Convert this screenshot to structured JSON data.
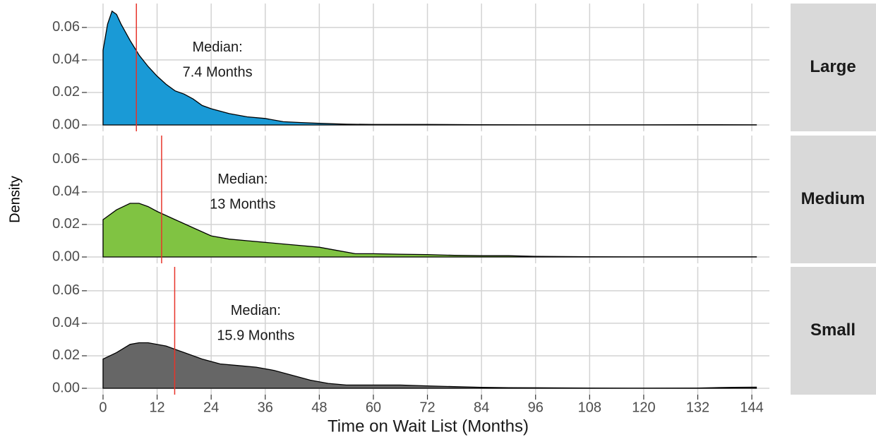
{
  "chart_data": [
    {
      "type": "area",
      "strip": "Large",
      "color": "#1a9ad6",
      "median": 7.4,
      "median_color": "#e8342a",
      "annotation": [
        "Median:",
        "7.4 Months"
      ],
      "x": [
        0,
        1,
        2,
        3,
        4,
        6,
        8,
        10,
        12,
        14,
        16,
        18,
        20,
        22,
        24,
        28,
        32,
        36,
        40,
        44,
        48,
        54,
        60,
        72,
        84,
        96,
        108,
        120,
        132,
        145
      ],
      "values": [
        0.046,
        0.062,
        0.07,
        0.068,
        0.062,
        0.052,
        0.043,
        0.036,
        0.03,
        0.025,
        0.021,
        0.019,
        0.016,
        0.012,
        0.01,
        0.007,
        0.005,
        0.004,
        0.002,
        0.0015,
        0.001,
        0.0005,
        0.0003,
        0.0003,
        0.0002,
        0.0001,
        0.0001,
        0.0001,
        0.0002,
        0.0001
      ],
      "xlim": [
        -3.6,
        147.9
      ],
      "xticks": [
        0,
        12,
        24,
        36,
        48,
        60,
        72,
        84,
        96,
        108,
        120,
        132,
        144
      ],
      "ylim": [
        -0.0039,
        0.0747
      ],
      "yticks": [
        {
          "value": 0,
          "label": "0.00"
        },
        0.02,
        0.04,
        0.06
      ],
      "grid": true
    },
    {
      "type": "area",
      "strip": "Medium",
      "color": "#80c342",
      "median": 13,
      "median_color": "#e8342a",
      "annotation": [
        "Median:",
        "13 Months"
      ],
      "ylabel": "Density",
      "x": [
        0,
        3,
        6,
        8,
        10,
        12,
        16,
        20,
        24,
        28,
        32,
        36,
        40,
        44,
        48,
        52,
        56,
        60,
        66,
        72,
        78,
        84,
        90,
        96,
        108,
        120,
        132,
        145
      ],
      "values": [
        0.023,
        0.029,
        0.033,
        0.033,
        0.031,
        0.028,
        0.023,
        0.018,
        0.013,
        0.011,
        0.01,
        0.009,
        0.008,
        0.007,
        0.006,
        0.004,
        0.002,
        0.002,
        0.0017,
        0.0015,
        0.001,
        0.0008,
        0.0008,
        0.0004,
        0.0002,
        0.0001,
        0.0001,
        0.0001
      ],
      "xlim": [
        -3.6,
        147.9
      ],
      "xticks": [
        0,
        12,
        24,
        36,
        48,
        60,
        72,
        84,
        96,
        108,
        120,
        132,
        144
      ],
      "ylim": [
        -0.0039,
        0.0747
      ],
      "yticks": [
        {
          "value": 0,
          "label": "0.00"
        },
        0.02,
        0.04,
        0.06
      ],
      "grid": true
    },
    {
      "type": "area",
      "strip": "Small",
      "color": "#666666",
      "median": 15.9,
      "median_color": "#e8342a",
      "annotation": [
        "Median:",
        "15.9 Months"
      ],
      "xlabel": "Time on Wait List (Months)",
      "x": [
        0,
        3,
        6,
        8,
        10,
        14,
        18,
        22,
        26,
        30,
        34,
        38,
        42,
        46,
        50,
        54,
        60,
        66,
        72,
        78,
        84,
        90,
        96,
        108,
        120,
        132,
        140,
        145
      ],
      "values": [
        0.018,
        0.022,
        0.027,
        0.028,
        0.028,
        0.026,
        0.022,
        0.018,
        0.015,
        0.014,
        0.013,
        0.011,
        0.008,
        0.005,
        0.003,
        0.002,
        0.002,
        0.002,
        0.0015,
        0.001,
        0.0006,
        0.0004,
        0.0003,
        0.0002,
        0.0001,
        0.0002,
        0.0006,
        0.0007
      ],
      "xlim": [
        -3.6,
        147.9
      ],
      "xticks": [
        0,
        12,
        24,
        36,
        48,
        60,
        72,
        84,
        96,
        108,
        120,
        132,
        144
      ],
      "ylim": [
        -0.0039,
        0.0747
      ],
      "yticks": [
        {
          "value": 0,
          "label": "0.00"
        },
        0.02,
        0.04,
        0.06
      ],
      "grid": true
    }
  ]
}
